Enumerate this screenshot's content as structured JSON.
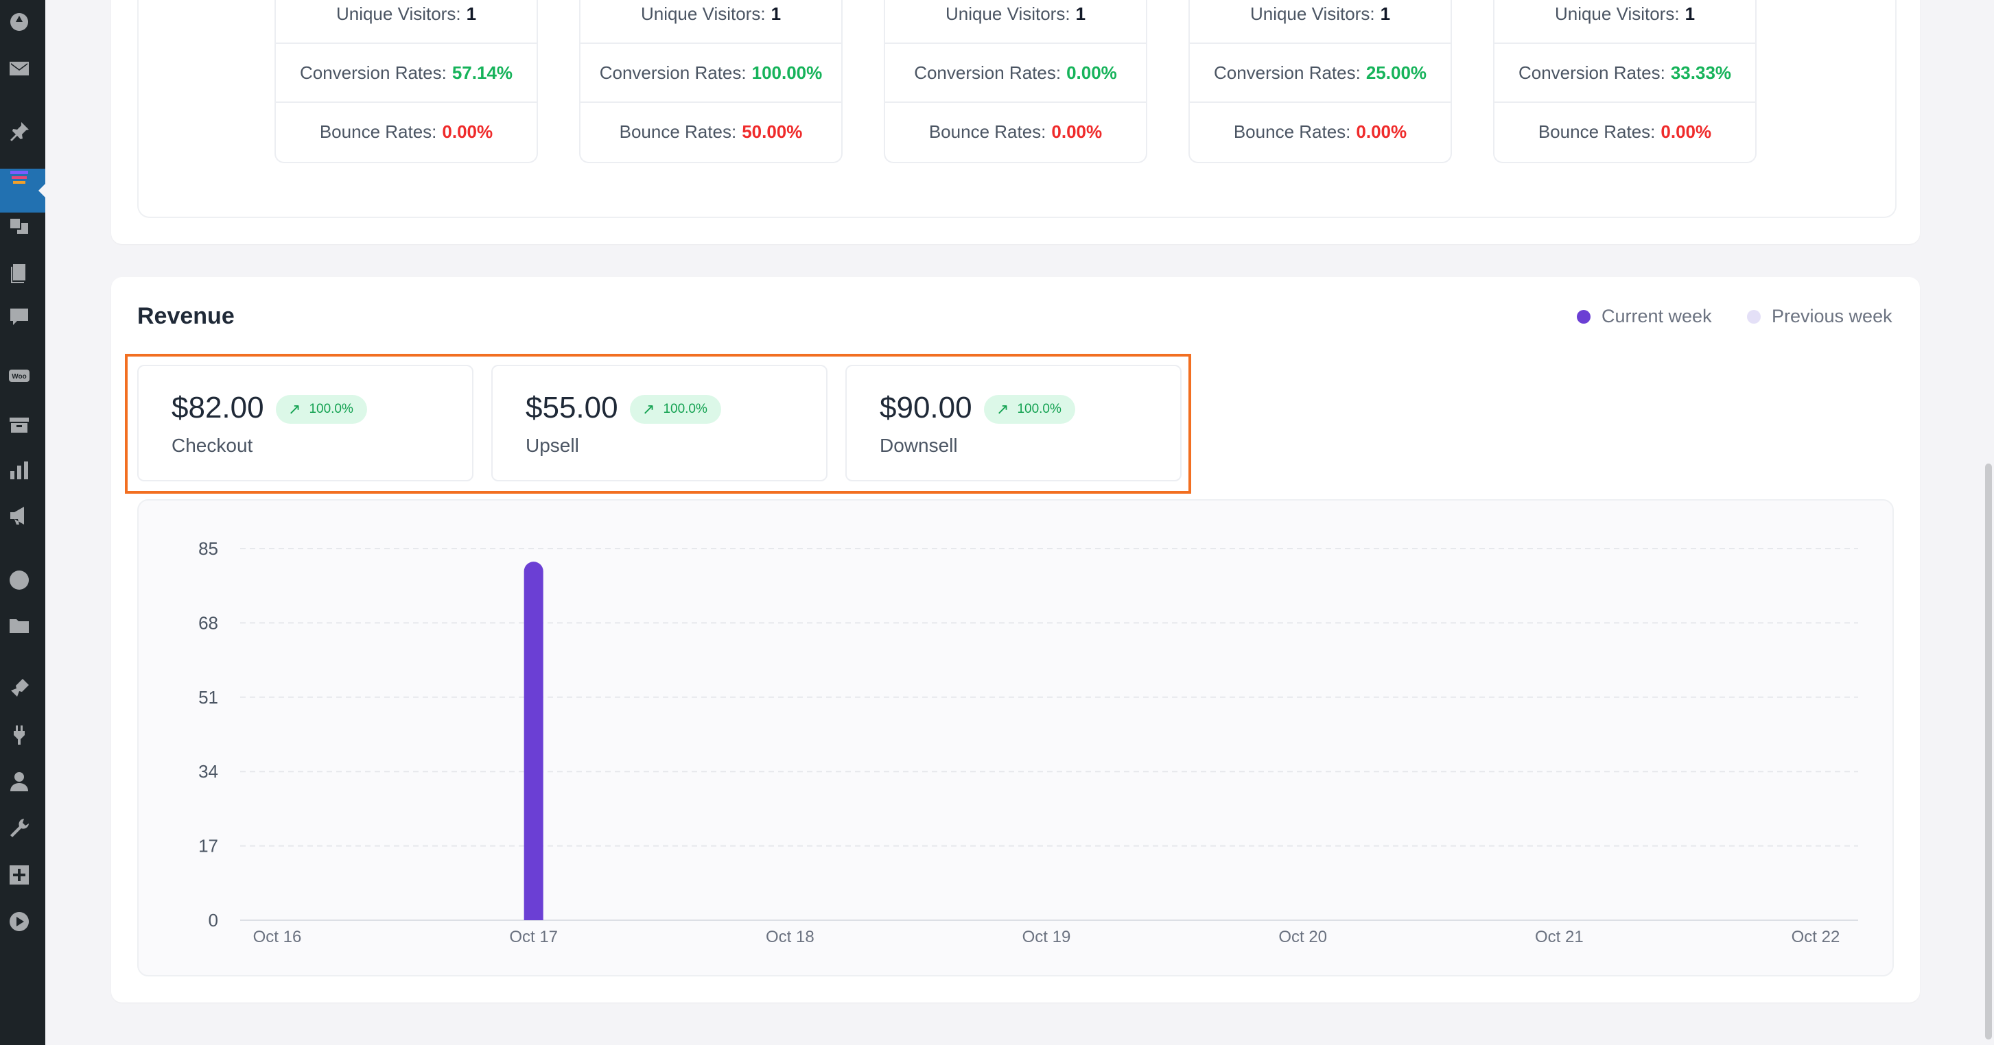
{
  "sidebar": {
    "icons": [
      "dashboard-icon",
      "mail-icon",
      "pin-icon",
      "funnel-icon",
      "media-icon",
      "pages-icon",
      "comments-icon",
      "woo-icon",
      "archive-icon",
      "analytics-icon",
      "megaphone-icon",
      "elementor-icon",
      "folder-icon",
      "brush-icon",
      "plugins-icon",
      "users-icon",
      "tools-icon",
      "plus-icon",
      "play-icon"
    ],
    "woo_label": "Woo"
  },
  "stats": [
    {
      "unique_label": "Unique Visitors:",
      "unique": "1",
      "conv_label": "Conversion Rates:",
      "conv": "57.14%",
      "bounce_label": "Bounce Rates:",
      "bounce": "0.00%"
    },
    {
      "unique_label": "Unique Visitors:",
      "unique": "1",
      "conv_label": "Conversion Rates:",
      "conv": "100.00%",
      "bounce_label": "Bounce Rates:",
      "bounce": "50.00%"
    },
    {
      "unique_label": "Unique Visitors:",
      "unique": "1",
      "conv_label": "Conversion Rates:",
      "conv": "0.00%",
      "bounce_label": "Bounce Rates:",
      "bounce": "0.00%"
    },
    {
      "unique_label": "Unique Visitors:",
      "unique": "1",
      "conv_label": "Conversion Rates:",
      "conv": "25.00%",
      "bounce_label": "Bounce Rates:",
      "bounce": "0.00%"
    },
    {
      "unique_label": "Unique Visitors:",
      "unique": "1",
      "conv_label": "Conversion Rates:",
      "conv": "33.33%",
      "bounce_label": "Bounce Rates:",
      "bounce": "0.00%"
    }
  ],
  "revenue": {
    "title": "Revenue",
    "legend_current": "Current week",
    "legend_previous": "Previous week",
    "colors": {
      "current": "#6b3fd4",
      "previous": "#e4e0f7",
      "highlight": "#f26f21"
    },
    "kpis": [
      {
        "value": "$82.00",
        "change": "100.0%",
        "label": "Checkout"
      },
      {
        "value": "$55.00",
        "change": "100.0%",
        "label": "Upsell"
      },
      {
        "value": "$90.00",
        "change": "100.0%",
        "label": "Downsell"
      }
    ]
  },
  "chart_data": {
    "type": "bar",
    "categories": [
      "Oct 16",
      "Oct 17",
      "Oct 18",
      "Oct 19",
      "Oct 20",
      "Oct 21",
      "Oct 22"
    ],
    "series": [
      {
        "name": "Current week",
        "values": [
          0,
          82,
          0,
          0,
          0,
          0,
          0
        ]
      },
      {
        "name": "Previous week",
        "values": [
          0,
          0,
          0,
          0,
          0,
          0,
          0
        ]
      }
    ],
    "yticks": [
      0,
      17,
      34,
      51,
      68,
      85
    ],
    "ylim": [
      0,
      85
    ],
    "grid": true,
    "legend": "top-right"
  }
}
